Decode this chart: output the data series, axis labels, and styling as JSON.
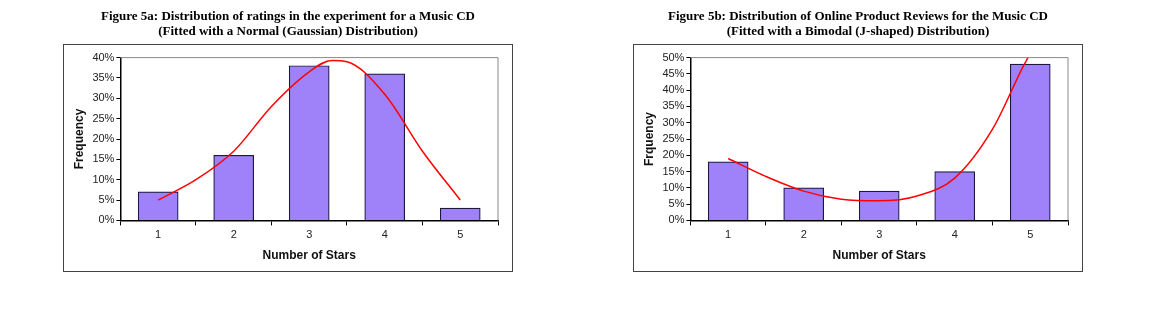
{
  "chart_data": [
    {
      "type": "bar",
      "title": "Figure 5a: Distribution of ratings in the experiment for a Music CD",
      "subtitle": "(Fitted with a Normal (Gaussian) Distribution)",
      "xlabel": "Number of Stars",
      "ylabel": "Frequency",
      "x": [
        1,
        2,
        3,
        4,
        5
      ],
      "xlim": [
        0.5,
        5.5
      ],
      "xticks": [
        1,
        2,
        3,
        4,
        5
      ],
      "ylim": [
        0,
        40
      ],
      "yticks": [
        {
          "value": 0,
          "label": "0%"
        },
        {
          "value": 5,
          "label": "5%"
        },
        {
          "value": 10,
          "label": "10%"
        },
        {
          "value": 15,
          "label": "15%"
        },
        {
          "value": 20,
          "label": "20%"
        },
        {
          "value": 25,
          "label": "25%"
        },
        {
          "value": 30,
          "label": "30%"
        },
        {
          "value": 35,
          "label": "35%"
        },
        {
          "value": 40,
          "label": "40%"
        }
      ],
      "legend": false,
      "series": [
        {
          "color": "#9f82fa",
          "values": [
            7,
            16,
            38,
            36,
            3
          ]
        },
        {
          "type": "line",
          "color": "#ff0000",
          "marker": "none",
          "x": [
            1,
            1.5,
            2,
            2.5,
            3,
            3.3,
            3.5,
            4,
            4.5,
            5
          ],
          "values": [
            5,
            10,
            17,
            28,
            36.5,
            39.3,
            39,
            31,
            17,
            5
          ]
        }
      ]
    },
    {
      "type": "bar",
      "title": "Figure 5b: Distribution of Online Product Reviews for the Music CD",
      "subtitle": "(Fitted with a Bimodal (J-shaped) Distribution)",
      "xlabel": "Number of Stars",
      "ylabel": "Frquency",
      "x": [
        1,
        2,
        3,
        4,
        5
      ],
      "xlim": [
        0.5,
        5.5
      ],
      "xticks": [
        1,
        2,
        3,
        4,
        5
      ],
      "ylim": [
        0,
        50
      ],
      "yticks": [
        {
          "value": 0,
          "label": "0%"
        },
        {
          "value": 5,
          "label": "5%"
        },
        {
          "value": 10,
          "label": "10%"
        },
        {
          "value": 15,
          "label": "15%"
        },
        {
          "value": 20,
          "label": "20%"
        },
        {
          "value": 25,
          "label": "25%"
        },
        {
          "value": 30,
          "label": "30%"
        },
        {
          "value": 35,
          "label": "35%"
        },
        {
          "value": 40,
          "label": "40%"
        },
        {
          "value": 45,
          "label": "45%"
        },
        {
          "value": 50,
          "label": "50%"
        }
      ],
      "legend": false,
      "series": [
        {
          "color": "#9f82fa",
          "values": [
            18,
            10,
            9,
            15,
            48
          ]
        },
        {
          "type": "line",
          "color": "#ff0000",
          "marker": "none",
          "x": [
            1,
            1.5,
            2,
            2.5,
            3,
            3.5,
            4,
            4.5,
            4.9,
            4.97
          ],
          "values": [
            19,
            13.5,
            9,
            6.5,
            6,
            7.5,
            13,
            28,
            47,
            50
          ]
        }
      ]
    }
  ]
}
